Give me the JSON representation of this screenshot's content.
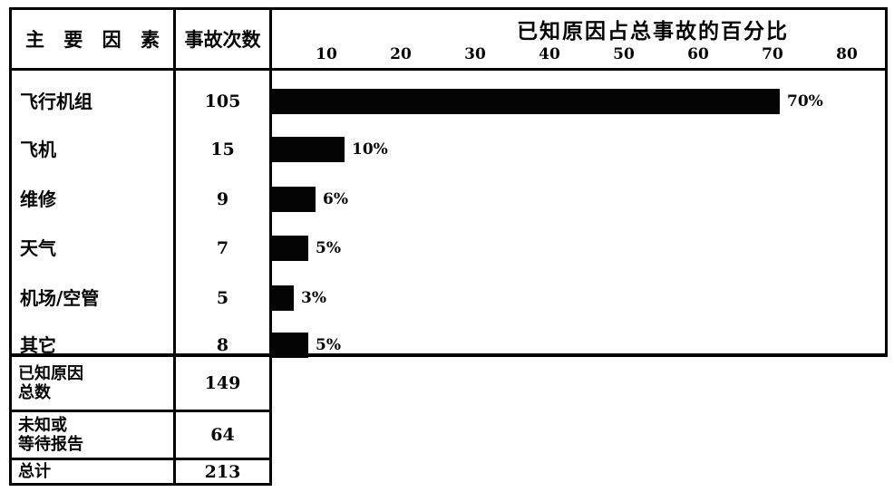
{
  "header": {
    "factor_col": "主 要 因 素",
    "count_col": "事故次数",
    "chart_title": "已知原因占总事故的百分比"
  },
  "chart_data": {
    "type": "bar",
    "orientation": "horizontal",
    "title": "已知原因占总事故的百分比",
    "categories": [
      "飞行机组",
      "飞机",
      "维修",
      "天气",
      "机场/空管",
      "其它"
    ],
    "values": [
      70,
      10,
      6,
      5,
      3,
      5
    ],
    "value_labels": [
      "70%",
      "10%",
      "6%",
      "5%",
      "3%",
      "5%"
    ],
    "counts": [
      105,
      15,
      9,
      7,
      5,
      8
    ],
    "xticks": [
      10,
      20,
      30,
      40,
      50,
      60,
      70,
      80
    ],
    "xlim": [
      0,
      85
    ],
    "bar_color": "#040404",
    "background_color": "#ffffff",
    "border_color": "#000000",
    "grid": false,
    "legend": "none"
  },
  "summary": {
    "rows": [
      {
        "label": "已知原因\n总数",
        "count": "149"
      },
      {
        "label": "未知或\n等待报告",
        "count": "64"
      },
      {
        "label": "总计",
        "count": "213"
      }
    ]
  }
}
